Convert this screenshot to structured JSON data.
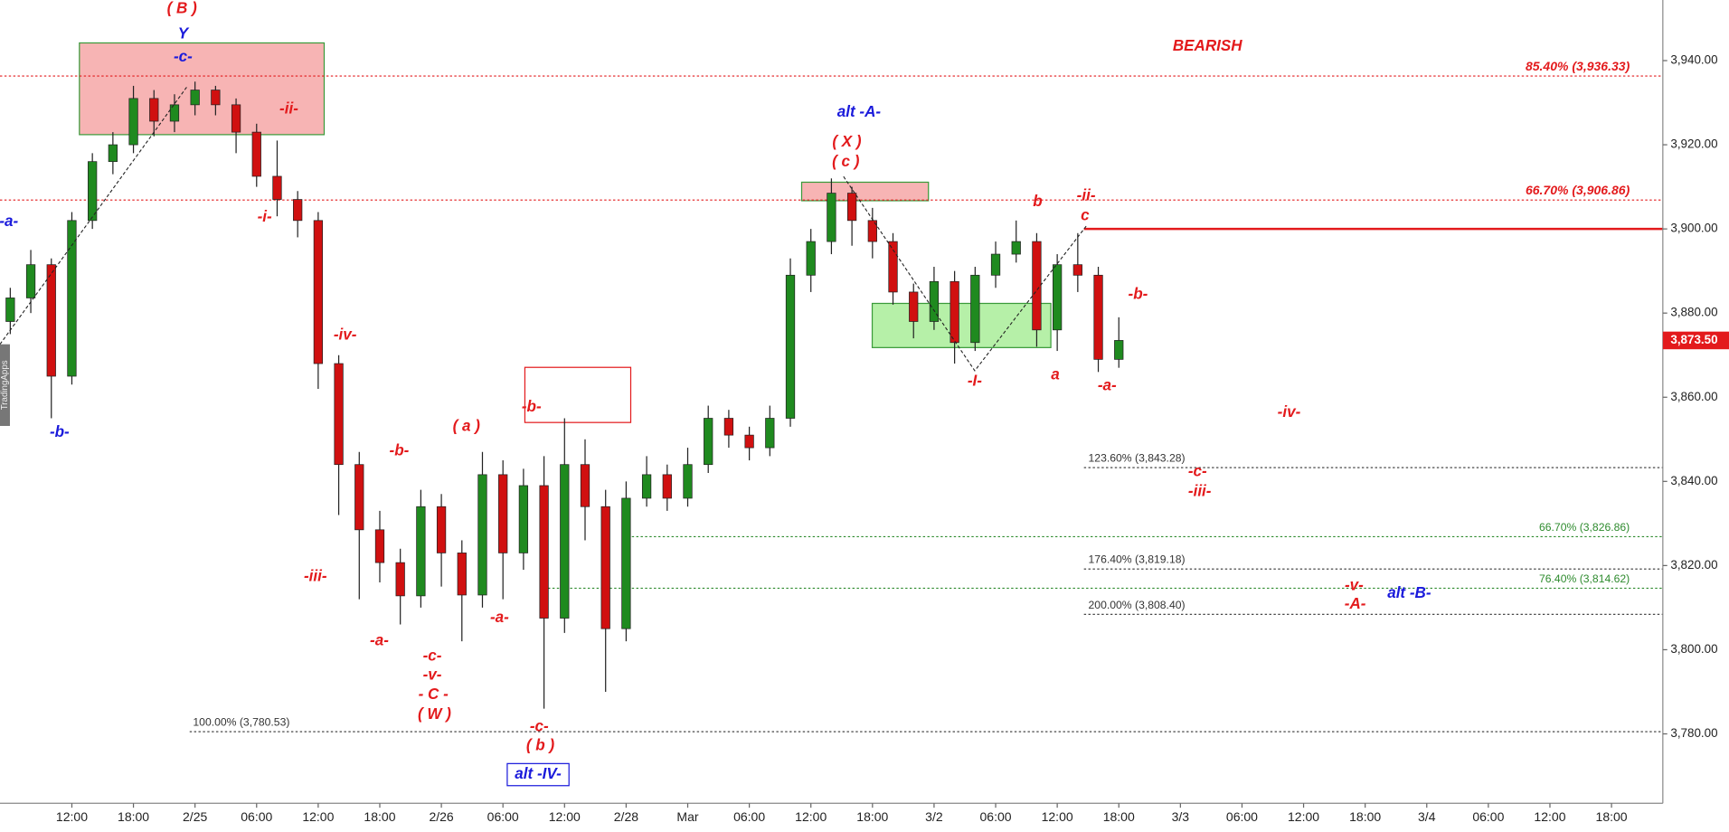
{
  "chart_data": {
    "type": "candlestick",
    "signal": "BEARISH",
    "watermark": "TradingApps",
    "categories": [
      null,
      null,
      null,
      "12:00",
      null,
      null,
      "18:00",
      null,
      null,
      "2/25",
      null,
      null,
      "06:00",
      null,
      null,
      "12:00",
      null,
      null,
      "18:00",
      null,
      null,
      "2/26",
      null,
      null,
      "06:00",
      null,
      null,
      "12:00",
      null,
      null,
      "2/28",
      null,
      null,
      "Mar",
      null,
      null,
      "06:00",
      null,
      null,
      "12:00",
      null,
      null,
      "18:00",
      null,
      null,
      "3/2",
      null,
      null,
      "06:00",
      null,
      null,
      "12:00",
      null,
      null,
      "18:00",
      null,
      null,
      "3/3",
      null,
      null,
      "06:00",
      null,
      null,
      "12:00",
      null,
      null,
      "18:00",
      null,
      null,
      "3/4",
      null,
      null,
      "06:00",
      null,
      null,
      "12:00",
      null,
      null,
      "18:00",
      null,
      null
    ],
    "open": [
      3878,
      3883.6,
      3891.5,
      3865,
      3902,
      3916,
      3920,
      3931,
      3925.6,
      3929.5,
      3933,
      3929.5,
      3923,
      3912.5,
      3907,
      3902,
      3868,
      3844,
      3828.5,
      3820.7,
      3812.8,
      3834,
      3823,
      3813,
      3841.6,
      3823,
      3839,
      3807.5,
      3844,
      3834,
      3805,
      3836,
      3841.6,
      3836,
      3844,
      3855,
      3851,
      3848,
      3855,
      3889,
      3897,
      3908.5,
      3902,
      3897,
      3885,
      3878,
      3887.5,
      3873,
      3889,
      3894,
      3897,
      3876,
      3891.5,
      3889,
      3869,
      null,
      null,
      null,
      null,
      null,
      null,
      null,
      null,
      null,
      null,
      null,
      null,
      null,
      null,
      null,
      null,
      null,
      null,
      null,
      null,
      null,
      null,
      null,
      null,
      null,
      null
    ],
    "high": [
      3886,
      3895,
      3893,
      3904,
      3918,
      3923,
      3934,
      3933,
      3932,
      3935,
      3934,
      3931,
      3925,
      3921,
      3909,
      3904,
      3870,
      3847,
      3833,
      3824,
      3838,
      3837,
      3826,
      3847,
      3845,
      3843,
      3846,
      3855,
      3850,
      3838,
      3840,
      3846,
      3844,
      3848,
      3858,
      3857,
      3853,
      3858,
      3893,
      3900,
      3912,
      3910,
      3905,
      3899,
      3887,
      3891,
      3890,
      3891,
      3897,
      3902,
      3899,
      3894,
      3899,
      3891,
      3879,
      null,
      null,
      null,
      null,
      null,
      null,
      null,
      null,
      null,
      null,
      null,
      null,
      null,
      null,
      null,
      null,
      null,
      null,
      null,
      null,
      null,
      null,
      null,
      null,
      null,
      null
    ],
    "low": [
      3875,
      3880,
      3855,
      3863,
      3900,
      3913,
      3918,
      3922,
      3923,
      3927,
      3927,
      3918,
      3910,
      3903,
      3898,
      3862,
      3832,
      3812,
      3816,
      3806,
      3810,
      3815,
      3802,
      3810,
      3812,
      3819,
      3786,
      3804,
      3826,
      3790,
      3802,
      3834,
      3833,
      3834,
      3842,
      3848,
      3845,
      3846,
      3853,
      3885,
      3894,
      3896,
      3893,
      3882,
      3874,
      3876,
      3868,
      3871,
      3886,
      3892,
      3872,
      3871,
      3885,
      3866,
      3867,
      null,
      null,
      null,
      null,
      null,
      null,
      null,
      null,
      null,
      null,
      null,
      null,
      null,
      null,
      null,
      null,
      null,
      null,
      null,
      null,
      null,
      null,
      null,
      null,
      null,
      null
    ],
    "close": [
      3883.6,
      3891.5,
      3865,
      3902,
      3916,
      3920,
      3931,
      3925.6,
      3929.5,
      3933,
      3929.5,
      3923,
      3912.5,
      3907,
      3902,
      3868,
      3844,
      3828.5,
      3820.7,
      3812.8,
      3834,
      3823,
      3813,
      3841.6,
      3823,
      3839,
      3807.5,
      3844,
      3834,
      3805,
      3836,
      3841.6,
      3836,
      3844,
      3855,
      3851,
      3848,
      3855,
      3889,
      3897,
      3908.5,
      3902,
      3897,
      3885,
      3878,
      3887.5,
      3873,
      3889,
      3894,
      3897,
      3876,
      3891.5,
      3889,
      3869,
      3873.5,
      null,
      null,
      null,
      null,
      null,
      null,
      null,
      null,
      null,
      null,
      null,
      null,
      null,
      null,
      null,
      null,
      null,
      null,
      null,
      null,
      null,
      null,
      null,
      null,
      null,
      null
    ],
    "up_color": "#1f8a1f",
    "down_color": "#d01010",
    "ylim": [
      3763.5,
      3954.4
    ],
    "yticks": [
      {
        "value": 3780,
        "label": "3,780.00"
      },
      {
        "value": 3800,
        "label": "3,800.00"
      },
      {
        "value": 3820,
        "label": "3,820.00"
      },
      {
        "value": 3840,
        "label": "3,840.00"
      },
      {
        "value": 3860,
        "label": "3,860.00"
      },
      {
        "value": 3880,
        "label": "3,880.00"
      },
      {
        "value": 3900,
        "label": "3,900.00"
      },
      {
        "value": 3920,
        "label": "3,920.00"
      },
      {
        "value": 3940,
        "label": "3,940.00"
      }
    ],
    "last_price": {
      "value": 3873.5,
      "label": "3,873.50"
    },
    "levels": [
      {
        "label": "85.40% (3,936.33)",
        "value": 3936.33,
        "color": "#e31a1c",
        "style": "dotted"
      },
      {
        "label": "66.70% (3,906.86)",
        "value": 3906.86,
        "color": "#e31a1c",
        "style": "dotted"
      },
      {
        "value": 3900,
        "color": "#e31a1c",
        "style": "solid"
      },
      {
        "label": "123.60% (3,843.28)",
        "value": 3843.28,
        "color": "#333333",
        "style": "dotted"
      },
      {
        "label": "66.70% (3,826.86)",
        "value": 3826.86,
        "color": "#2e8b2e",
        "style": "dotted"
      },
      {
        "label": "176.40% (3,819.18)",
        "value": 3819.18,
        "color": "#333333",
        "style": "dotted"
      },
      {
        "label": "76.40% (3,814.62)",
        "value": 3814.62,
        "color": "#2e8b2e",
        "style": "dotted"
      },
      {
        "label": "200.00% (3,808.40)",
        "value": 3808.4,
        "color": "#333333",
        "style": "dotted"
      },
      {
        "label": "100.00% (3,780.53)",
        "value": 3780.53,
        "color": "#333333",
        "style": "dotted"
      }
    ],
    "zones": [
      {
        "high": 3944.2,
        "low": 3922.4,
        "fill": "#f7b4b4",
        "stroke": "#3a9a3a"
      },
      {
        "high": 3911.1,
        "low": 3906.7,
        "fill": "#f7b4b4",
        "stroke": "#3a9a3a"
      },
      {
        "high": 3882.3,
        "low": 3871.8,
        "fill": "#b6f0a8",
        "stroke": "#3a9a3a"
      },
      {
        "high": 3867.1,
        "low": 3854,
        "fill": "none",
        "stroke": "#e31a1c"
      }
    ],
    "annotations": [
      {
        "text": "( B )",
        "color": "#e31a1c"
      },
      {
        "text": "Y",
        "color": "#1a1adb"
      },
      {
        "text": "-c-",
        "color": "#1a1adb"
      },
      {
        "text": "-ii-",
        "color": "#e31a1c"
      },
      {
        "text": "-a-",
        "color": "#1a1adb"
      },
      {
        "text": "-i-",
        "color": "#e31a1c"
      },
      {
        "text": "-b-",
        "color": "#1a1adb"
      },
      {
        "text": "-iv-",
        "color": "#e31a1c"
      },
      {
        "text": "-iii-",
        "color": "#e31a1c"
      },
      {
        "text": "-b-",
        "color": "#e31a1c"
      },
      {
        "text": "( a )",
        "color": "#e31a1c"
      },
      {
        "text": "-a-",
        "color": "#e31a1c"
      },
      {
        "text": "-c-",
        "color": "#e31a1c"
      },
      {
        "text": "-v-",
        "color": "#e31a1c"
      },
      {
        "text": "- C -",
        "color": "#e31a1c"
      },
      {
        "text": "( W )",
        "color": "#e31a1c"
      },
      {
        "text": "-a-",
        "color": "#e31a1c"
      },
      {
        "text": "-b-",
        "color": "#e31a1c"
      },
      {
        "text": "-c-",
        "color": "#e31a1c"
      },
      {
        "text": "( b )",
        "color": "#e31a1c"
      },
      {
        "text": "alt -IV-",
        "color": "#1a1adb",
        "boxed": true
      },
      {
        "text": "alt -A-",
        "color": "#1a1adb"
      },
      {
        "text": "( X )",
        "color": "#e31a1c"
      },
      {
        "text": "( c )",
        "color": "#e31a1c"
      },
      {
        "text": "b",
        "color": "#e31a1c"
      },
      {
        "text": "-ii-",
        "color": "#e31a1c"
      },
      {
        "text": "c",
        "color": "#e31a1c"
      },
      {
        "text": "-b-",
        "color": "#e31a1c"
      },
      {
        "text": "-I-",
        "color": "#e31a1c"
      },
      {
        "text": "a",
        "color": "#e31a1c"
      },
      {
        "text": "-a-",
        "color": "#e31a1c"
      },
      {
        "text": "-iv-",
        "color": "#e31a1c"
      },
      {
        "text": "-c-",
        "color": "#e31a1c"
      },
      {
        "text": "-iii-",
        "color": "#e31a1c"
      },
      {
        "text": "-v-",
        "color": "#e31a1c"
      },
      {
        "text": "-A-",
        "color": "#e31a1c"
      },
      {
        "text": "alt -B-",
        "color": "#1a1adb"
      }
    ]
  }
}
